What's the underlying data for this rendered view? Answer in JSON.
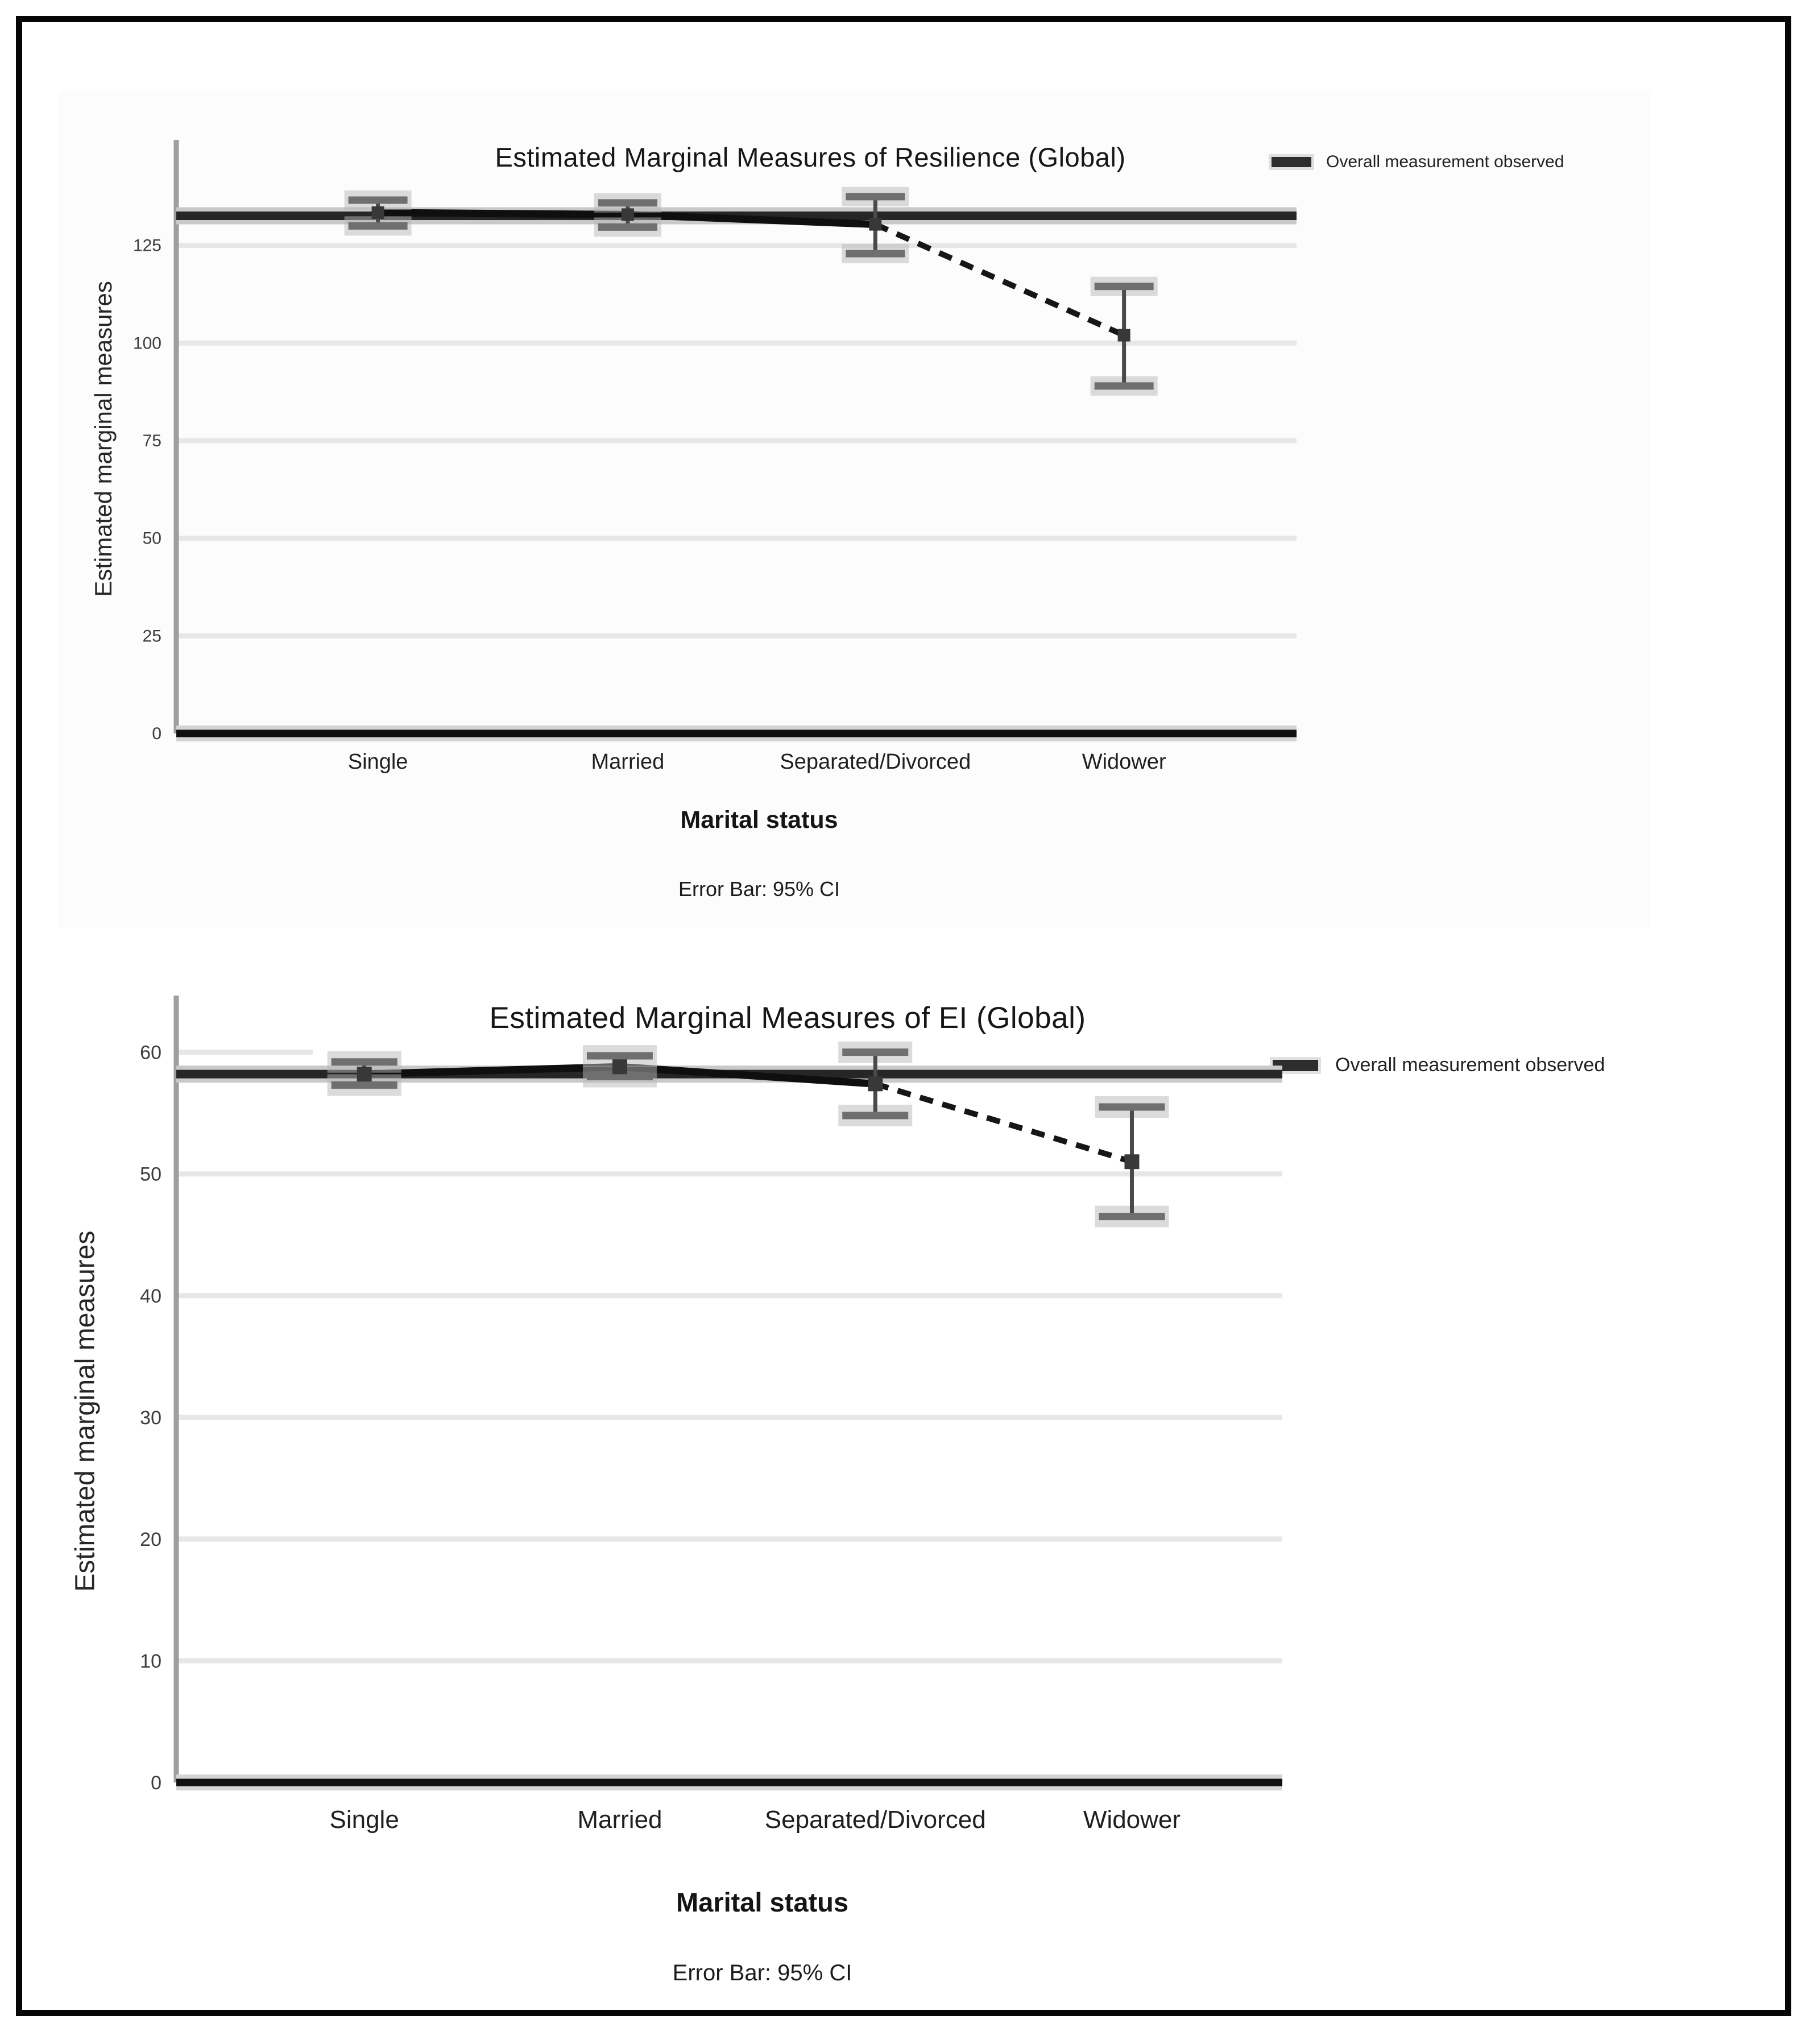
{
  "figure": {
    "background": "#ffffff",
    "border_color": "#060606",
    "accent_dark": "#161616",
    "grid_color": "#e7e7e7",
    "error_bar_color": "#6f6f6f"
  },
  "chart_data": [
    {
      "type": "line",
      "title": "Estimated Marginal Measures of Resilience (Global)",
      "xlabel": "Marital status",
      "ylabel": "Estimated marginal measures",
      "footnote": "Error Bar: 95% CI",
      "legend_position": "top-right",
      "grid": "horizontal",
      "error_bars": "95% CI",
      "categories": [
        "Single",
        "Married",
        "Separated/Divorced",
        "Widower"
      ],
      "series": [
        {
          "name": "Estimated marginal measures",
          "values": [
            133.4,
            132.9,
            130.4,
            102
          ],
          "ci_low": [
            130.0,
            129.7,
            122.9,
            89.0
          ],
          "ci_high": [
            136.6,
            135.9,
            137.5,
            114.5
          ]
        }
      ],
      "reference_line": {
        "label": "Overall measurement observed",
        "value": 132.6
      },
      "y_ticks": [
        0,
        25,
        50,
        75,
        100,
        125
      ],
      "ylim": [
        0,
        150
      ]
    },
    {
      "type": "line",
      "title": "Estimated Marginal Measures of EI (Global)",
      "xlabel": "Marital status",
      "ylabel": "Estimated marginal measures",
      "footnote": "Error Bar: 95% CI",
      "legend_position": "top-right",
      "grid": "horizontal",
      "error_bars": "95% CI",
      "categories": [
        "Single",
        "Married",
        "Separated/Divorced",
        "Widower"
      ],
      "series": [
        {
          "name": "Estimated marginal measures",
          "values": [
            58.2,
            58.8,
            57.4,
            51.0
          ],
          "ci_low": [
            57.3,
            58.0,
            54.8,
            46.5
          ],
          "ci_high": [
            59.2,
            59.7,
            60.0,
            55.5
          ]
        }
      ],
      "reference_line": {
        "label": "Overall measurement observed",
        "value": 58.2
      },
      "y_ticks": [
        0,
        10,
        20,
        30,
        40,
        50,
        60
      ],
      "ylim": [
        0,
        64
      ]
    }
  ]
}
